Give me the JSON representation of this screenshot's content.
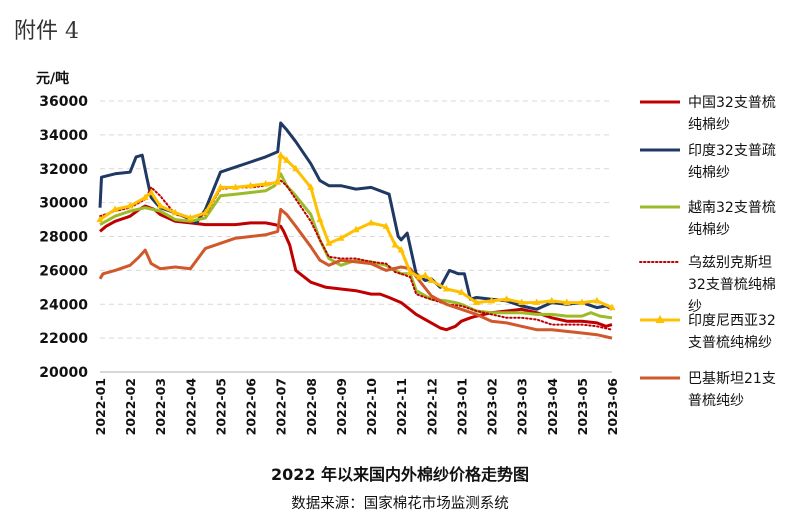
{
  "attachment_label": "附件 4",
  "chart_data": {
    "type": "line",
    "title": "2022 年以来国内外棉纱价格走势图",
    "source": "数据来源：国家棉花市场监测系统",
    "ylabel": "元/吨",
    "xlabel": "",
    "ylim": [
      20000,
      36000
    ],
    "yticks": [
      20000,
      22000,
      24000,
      26000,
      28000,
      30000,
      32000,
      34000,
      36000
    ],
    "ytick_labels": [
      "20000",
      "22000",
      "24000",
      "26000",
      "28000",
      "30000",
      "32000",
      "34000",
      "36000"
    ],
    "xlim": [
      0,
      17
    ],
    "xtick_labels": [
      "2022-01",
      "2022-02",
      "2022-03",
      "2022-04",
      "2022-05",
      "2022-06",
      "2022-07",
      "2022-08",
      "2022-09",
      "2022-10",
      "2022-11",
      "2022-12",
      "2023-01",
      "2023-02",
      "2023-03",
      "2023-04",
      "2023-05",
      "2023-06"
    ],
    "grid": true,
    "legend_position": "right",
    "series": [
      {
        "name": "中国32支普梳纯棉纱",
        "legend_lines": [
          "中国32支普梳",
          "纯棉纱"
        ],
        "color": "#c00000",
        "style": "solid",
        "marker": "none",
        "x": [
          0,
          0.2,
          0.5,
          1.0,
          1.3,
          1.5,
          1.8,
          2.0,
          2.5,
          3.0,
          3.5,
          4.0,
          4.5,
          5.0,
          5.2,
          5.5,
          5.8,
          6.0,
          6.1,
          6.3,
          6.5,
          7.0,
          7.5,
          8.0,
          8.5,
          9.0,
          9.3,
          9.6,
          10.0,
          10.5,
          11.0,
          11.3,
          11.5,
          11.8,
          12.0,
          12.3,
          12.5,
          13.0,
          13.5,
          14.0,
          14.5,
          15.0,
          15.5,
          16.0,
          16.5,
          16.8,
          17.0
        ],
        "y": [
          28300,
          28600,
          28900,
          29200,
          29600,
          29800,
          29600,
          29300,
          28900,
          28800,
          28700,
          28700,
          28700,
          28800,
          28800,
          28800,
          28700,
          28600,
          28300,
          27500,
          26000,
          25300,
          25000,
          24900,
          24800,
          24600,
          24600,
          24400,
          24100,
          23400,
          22900,
          22600,
          22500,
          22700,
          23000,
          23200,
          23300,
          23500,
          23600,
          23700,
          23500,
          23200,
          23000,
          23000,
          22900,
          22700,
          22800
        ]
      },
      {
        "name": "印度32支普疏纯棉纱",
        "legend_lines": [
          "印度32支普疏",
          "纯棉纱"
        ],
        "color": "#1f3864",
        "style": "solid",
        "marker": "none",
        "x": [
          0,
          0.05,
          0.5,
          1.0,
          1.2,
          1.4,
          1.55,
          1.7,
          2.0,
          2.5,
          2.9,
          3.0,
          3.2,
          3.5,
          4.0,
          4.5,
          5.0,
          5.5,
          5.9,
          6.0,
          6.2,
          6.5,
          7.0,
          7.3,
          7.6,
          8.0,
          8.5,
          9.0,
          9.6,
          9.9,
          10.0,
          10.2,
          10.5,
          10.8,
          11.0,
          11.3,
          11.6,
          11.9,
          12.1,
          12.3,
          12.5,
          13.0,
          13.5,
          14.0,
          14.5,
          15.0,
          15.5,
          16.0,
          16.5,
          16.8,
          17.0
        ],
        "y": [
          29700,
          31500,
          31700,
          31800,
          32700,
          32800,
          31500,
          30300,
          29700,
          29400,
          29100,
          29000,
          28800,
          29600,
          31800,
          32100,
          32400,
          32700,
          33000,
          34700,
          34300,
          33600,
          32300,
          31300,
          31000,
          31000,
          30800,
          30900,
          30500,
          28000,
          27800,
          28200,
          25800,
          25400,
          25500,
          25000,
          26000,
          25800,
          25800,
          24300,
          24400,
          24300,
          24200,
          23900,
          23700,
          24100,
          24000,
          24100,
          23800,
          23900,
          23700
        ]
      },
      {
        "name": "越南32支普梳纯棉纱",
        "legend_lines": [
          "越南32支普梳",
          "纯棉纱"
        ],
        "color": "#9bbb29",
        "style": "solid",
        "marker": "none",
        "x": [
          0,
          0.5,
          1.0,
          1.5,
          2.0,
          2.5,
          3.0,
          3.5,
          4.0,
          4.5,
          5.0,
          5.5,
          5.8,
          6.0,
          6.2,
          6.5,
          7.0,
          7.3,
          7.6,
          8.0,
          8.5,
          9.0,
          9.5,
          9.8,
          10.0,
          10.3,
          10.5,
          10.8,
          11.0,
          11.5,
          11.8,
          12.0,
          12.5,
          13.0,
          13.5,
          14.0,
          14.5,
          15.0,
          15.5,
          16.0,
          16.3,
          16.6,
          17.0
        ],
        "y": [
          28700,
          29200,
          29500,
          29700,
          29500,
          29000,
          28900,
          29100,
          30400,
          30500,
          30600,
          30700,
          31000,
          31700,
          31000,
          30400,
          29300,
          27800,
          26700,
          26300,
          26600,
          26500,
          26300,
          26000,
          25800,
          25800,
          24800,
          24500,
          24300,
          24200,
          24100,
          24000,
          23600,
          23500,
          23500,
          23500,
          23400,
          23400,
          23300,
          23300,
          23500,
          23300,
          23200
        ]
      },
      {
        "name": "乌兹别克斯坦32支普梳纯棉纱",
        "legend_lines": [
          "乌兹别克斯坦",
          "32支普梳纯棉",
          "纱"
        ],
        "color": "#c00000",
        "style": "dotted",
        "marker": "none",
        "x": [
          0,
          0.5,
          1.0,
          1.5,
          1.7,
          2.0,
          2.5,
          3.0,
          3.5,
          4.0,
          4.5,
          5.0,
          5.5,
          6.0,
          6.2,
          6.5,
          7.0,
          7.3,
          7.6,
          8.0,
          8.5,
          9.0,
          9.5,
          9.8,
          10.0,
          10.3,
          10.5,
          10.8,
          11.0,
          11.5,
          12.0,
          12.5,
          13.0,
          13.5,
          14.0,
          14.5,
          15.0,
          15.5,
          16.0,
          16.5,
          17.0
        ],
        "y": [
          29200,
          29500,
          29700,
          30200,
          30900,
          30400,
          29300,
          29100,
          29300,
          30800,
          30900,
          30900,
          31000,
          31300,
          31000,
          30200,
          28900,
          27800,
          26800,
          26700,
          26700,
          26500,
          26400,
          25900,
          25800,
          25600,
          24600,
          24400,
          24300,
          24000,
          23900,
          23600,
          23400,
          23200,
          23200,
          23100,
          22800,
          22800,
          22800,
          22700,
          22500
        ]
      },
      {
        "name": "印度尼西亚32支普梳纯棉纱",
        "legend_lines": [
          "印度尼西亚32",
          "支普梳纯棉纱"
        ],
        "color": "#ffc000",
        "style": "solid",
        "marker": "triangle",
        "x": [
          0,
          0.5,
          1.0,
          1.5,
          1.7,
          2.0,
          2.5,
          3.0,
          3.5,
          4.0,
          4.5,
          5.0,
          5.5,
          5.9,
          6.0,
          6.2,
          6.5,
          7.0,
          7.3,
          7.6,
          8.0,
          8.5,
          9.0,
          9.5,
          9.8,
          10.0,
          10.3,
          10.6,
          10.8,
          11.0,
          11.5,
          12.0,
          12.5,
          13.0,
          13.5,
          14.0,
          14.5,
          15.0,
          15.5,
          16.0,
          16.5,
          17.0
        ],
        "y": [
          29000,
          29600,
          29800,
          30300,
          30600,
          29800,
          29400,
          29100,
          29400,
          30900,
          30900,
          31000,
          31100,
          31200,
          32800,
          32500,
          32000,
          30900,
          29000,
          27600,
          27900,
          28400,
          28800,
          28600,
          27500,
          27200,
          25900,
          25600,
          25700,
          25400,
          24900,
          24700,
          24100,
          24200,
          24300,
          24100,
          24100,
          24200,
          24100,
          24100,
          24200,
          23800
        ]
      },
      {
        "name": "巴基斯坦21支普梳纯纱",
        "legend_lines": [
          "巴基斯坦21支",
          "普梳纯纱"
        ],
        "color": "#d0582a",
        "style": "solid",
        "marker": "none",
        "x": [
          0,
          0.1,
          0.5,
          1.0,
          1.3,
          1.5,
          1.7,
          2.0,
          2.5,
          3.0,
          3.5,
          4.0,
          4.5,
          5.0,
          5.5,
          5.9,
          6.0,
          6.2,
          6.5,
          7.0,
          7.3,
          7.6,
          8.0,
          8.5,
          9.0,
          9.5,
          10.0,
          10.3,
          10.6,
          11.0,
          11.5,
          12.0,
          12.5,
          13.0,
          13.5,
          14.0,
          14.5,
          15.0,
          15.5,
          16.0,
          16.5,
          17.0
        ],
        "y": [
          25500,
          25800,
          26000,
          26300,
          26800,
          27200,
          26400,
          26100,
          26200,
          26100,
          27300,
          27600,
          27900,
          28000,
          28100,
          28300,
          29600,
          29300,
          28600,
          27400,
          26600,
          26300,
          26600,
          26500,
          26400,
          26000,
          26200,
          26100,
          25400,
          24500,
          24000,
          23700,
          23400,
          23000,
          22900,
          22700,
          22500,
          22500,
          22400,
          22300,
          22200,
          22000
        ]
      }
    ]
  }
}
